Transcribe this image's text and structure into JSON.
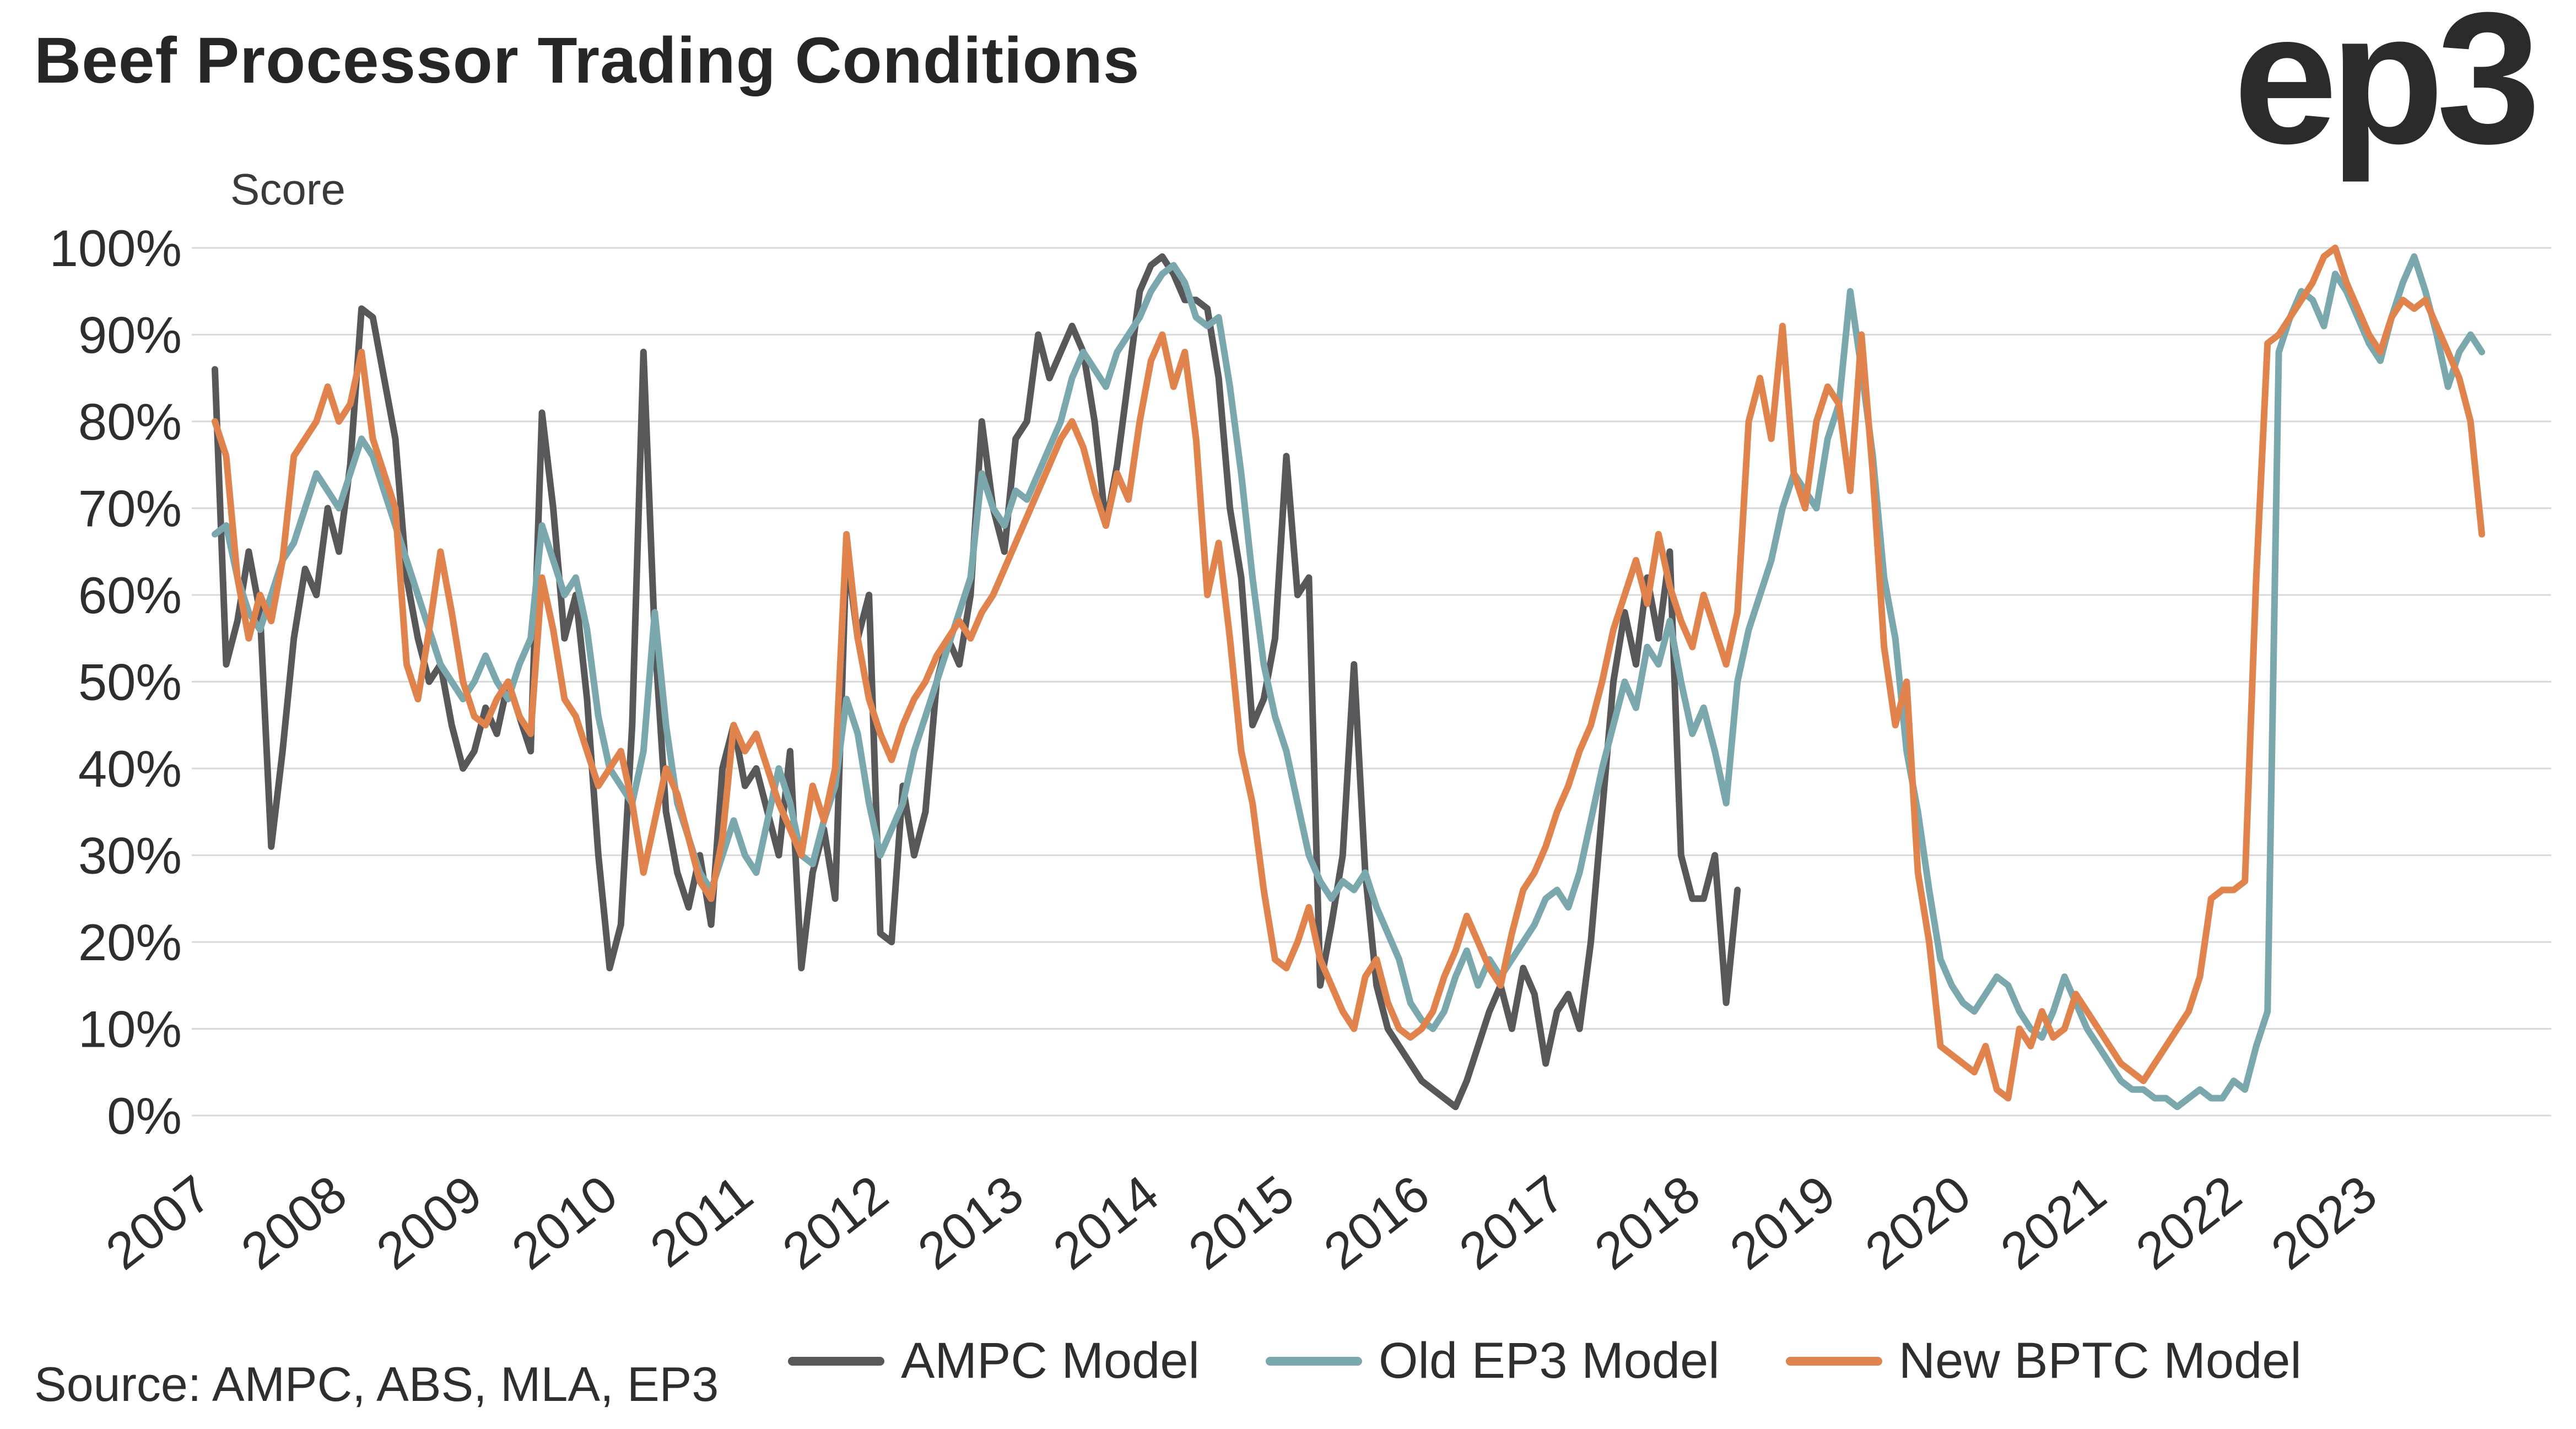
{
  "header": {
    "title": "Beef Processor Trading Conditions",
    "logo": "ep3"
  },
  "footer": {
    "source": "Source: AMPC, ABS, MLA, EP3"
  },
  "chart_data": {
    "type": "line",
    "title": "Beef Processor Trading Conditions",
    "ylabel": "Score",
    "xlabel": "",
    "ylim": [
      0,
      100
    ],
    "y_tick_step": 10,
    "y_tick_suffix": "%",
    "grid": "horizontal",
    "legend_position": "bottom",
    "x_start": "2007-01",
    "x_resolution": "monthly",
    "x_span_months": 204,
    "x_tick_years": [
      2007,
      2008,
      2009,
      2010,
      2011,
      2012,
      2013,
      2014,
      2015,
      2016,
      2017,
      2018,
      2019,
      2020,
      2021,
      2022,
      2023
    ],
    "series": [
      {
        "id": "ampc",
        "name": "AMPC Model",
        "color": "#58585a",
        "values": [
          86,
          52,
          57,
          65,
          58,
          31,
          42,
          55,
          63,
          60,
          70,
          65,
          75,
          93,
          92,
          85,
          78,
          62,
          55,
          50,
          52,
          45,
          40,
          42,
          47,
          44,
          50,
          46,
          42,
          81,
          70,
          55,
          60,
          48,
          30,
          17,
          22,
          45,
          88,
          55,
          35,
          28,
          24,
          30,
          22,
          40,
          45,
          38,
          40,
          35,
          30,
          42,
          17,
          28,
          33,
          25,
          65,
          55,
          60,
          21,
          20,
          38,
          30,
          35,
          50,
          55,
          52,
          60,
          80,
          70,
          65,
          78,
          80,
          90,
          85,
          88,
          91,
          88,
          80,
          68,
          75,
          85,
          95,
          98,
          99,
          97,
          94,
          94,
          93,
          85,
          70,
          62,
          45,
          48,
          55,
          76,
          60,
          62,
          15,
          22,
          30,
          52,
          28,
          15,
          10,
          8,
          6,
          4,
          3,
          2,
          1,
          4,
          8,
          12,
          15,
          10,
          17,
          14,
          6,
          12,
          14,
          10,
          20,
          35,
          50,
          58,
          52,
          62,
          55,
          65,
          30,
          25,
          25,
          30,
          13,
          26
        ]
      },
      {
        "id": "old_ep3",
        "name": "Old EP3 Model",
        "color": "#7aa8ac",
        "values": [
          67,
          68,
          62,
          58,
          56,
          60,
          64,
          66,
          70,
          74,
          72,
          70,
          74,
          78,
          76,
          72,
          68,
          64,
          60,
          56,
          52,
          50,
          48,
          50,
          53,
          50,
          48,
          52,
          55,
          68,
          64,
          60,
          62,
          56,
          46,
          40,
          38,
          36,
          42,
          58,
          45,
          36,
          32,
          28,
          26,
          30,
          34,
          30,
          28,
          34,
          40,
          36,
          30,
          29,
          34,
          38,
          48,
          44,
          36,
          30,
          33,
          36,
          42,
          46,
          50,
          54,
          58,
          62,
          74,
          70,
          68,
          72,
          71,
          74,
          77,
          80,
          85,
          88,
          86,
          84,
          88,
          90,
          92,
          95,
          97,
          98,
          96,
          92,
          91,
          92,
          84,
          74,
          62,
          52,
          46,
          42,
          36,
          30,
          27,
          25,
          27,
          26,
          28,
          24,
          21,
          18,
          13,
          11,
          10,
          12,
          16,
          19,
          15,
          18,
          16,
          18,
          20,
          22,
          25,
          26,
          24,
          28,
          34,
          40,
          45,
          50,
          47,
          54,
          52,
          57,
          50,
          44,
          47,
          42,
          36,
          50,
          56,
          60,
          64,
          70,
          74,
          72,
          70,
          78,
          82,
          95,
          86,
          76,
          62,
          55,
          42,
          35,
          26,
          18,
          15,
          13,
          12,
          14,
          16,
          15,
          12,
          10,
          9,
          12,
          16,
          13,
          10,
          8,
          6,
          4,
          3,
          3,
          2,
          2,
          1,
          2,
          3,
          2,
          2,
          4,
          3,
          8,
          12,
          88,
          92,
          95,
          94,
          91,
          97,
          95,
          92,
          89,
          87,
          92,
          96,
          99,
          95,
          90,
          84,
          88,
          90,
          88
        ]
      },
      {
        "id": "new_bptc",
        "name": "New BPTC Model",
        "color": "#e0834c",
        "values": [
          80,
          76,
          62,
          55,
          60,
          57,
          64,
          76,
          78,
          80,
          84,
          80,
          82,
          88,
          78,
          74,
          70,
          52,
          48,
          56,
          65,
          58,
          50,
          46,
          45,
          48,
          50,
          46,
          44,
          62,
          56,
          48,
          46,
          42,
          38,
          40,
          42,
          36,
          28,
          34,
          40,
          37,
          32,
          27,
          25,
          32,
          45,
          42,
          44,
          40,
          36,
          33,
          30,
          38,
          34,
          40,
          67,
          55,
          48,
          44,
          41,
          45,
          48,
          50,
          53,
          55,
          57,
          55,
          58,
          60,
          63,
          66,
          69,
          72,
          75,
          78,
          80,
          77,
          72,
          68,
          74,
          71,
          80,
          87,
          90,
          84,
          88,
          78,
          60,
          66,
          55,
          42,
          36,
          26,
          18,
          17,
          20,
          24,
          18,
          15,
          12,
          10,
          16,
          18,
          13,
          10,
          9,
          10,
          12,
          16,
          19,
          23,
          20,
          17,
          15,
          21,
          26,
          28,
          31,
          35,
          38,
          42,
          45,
          50,
          56,
          60,
          64,
          59,
          67,
          61,
          57,
          54,
          60,
          56,
          52,
          58,
          80,
          85,
          78,
          91,
          74,
          70,
          80,
          84,
          82,
          72,
          90,
          74,
          54,
          45,
          50,
          28,
          20,
          8,
          7,
          6,
          5,
          8,
          3,
          2,
          10,
          8,
          12,
          9,
          10,
          14,
          12,
          10,
          8,
          6,
          5,
          4,
          6,
          8,
          10,
          12,
          16,
          25,
          26,
          26,
          27,
          62,
          89,
          90,
          92,
          94,
          96,
          99,
          100,
          96,
          93,
          90,
          88,
          92,
          94,
          93,
          94,
          91,
          88,
          85,
          80,
          67
        ]
      }
    ]
  }
}
